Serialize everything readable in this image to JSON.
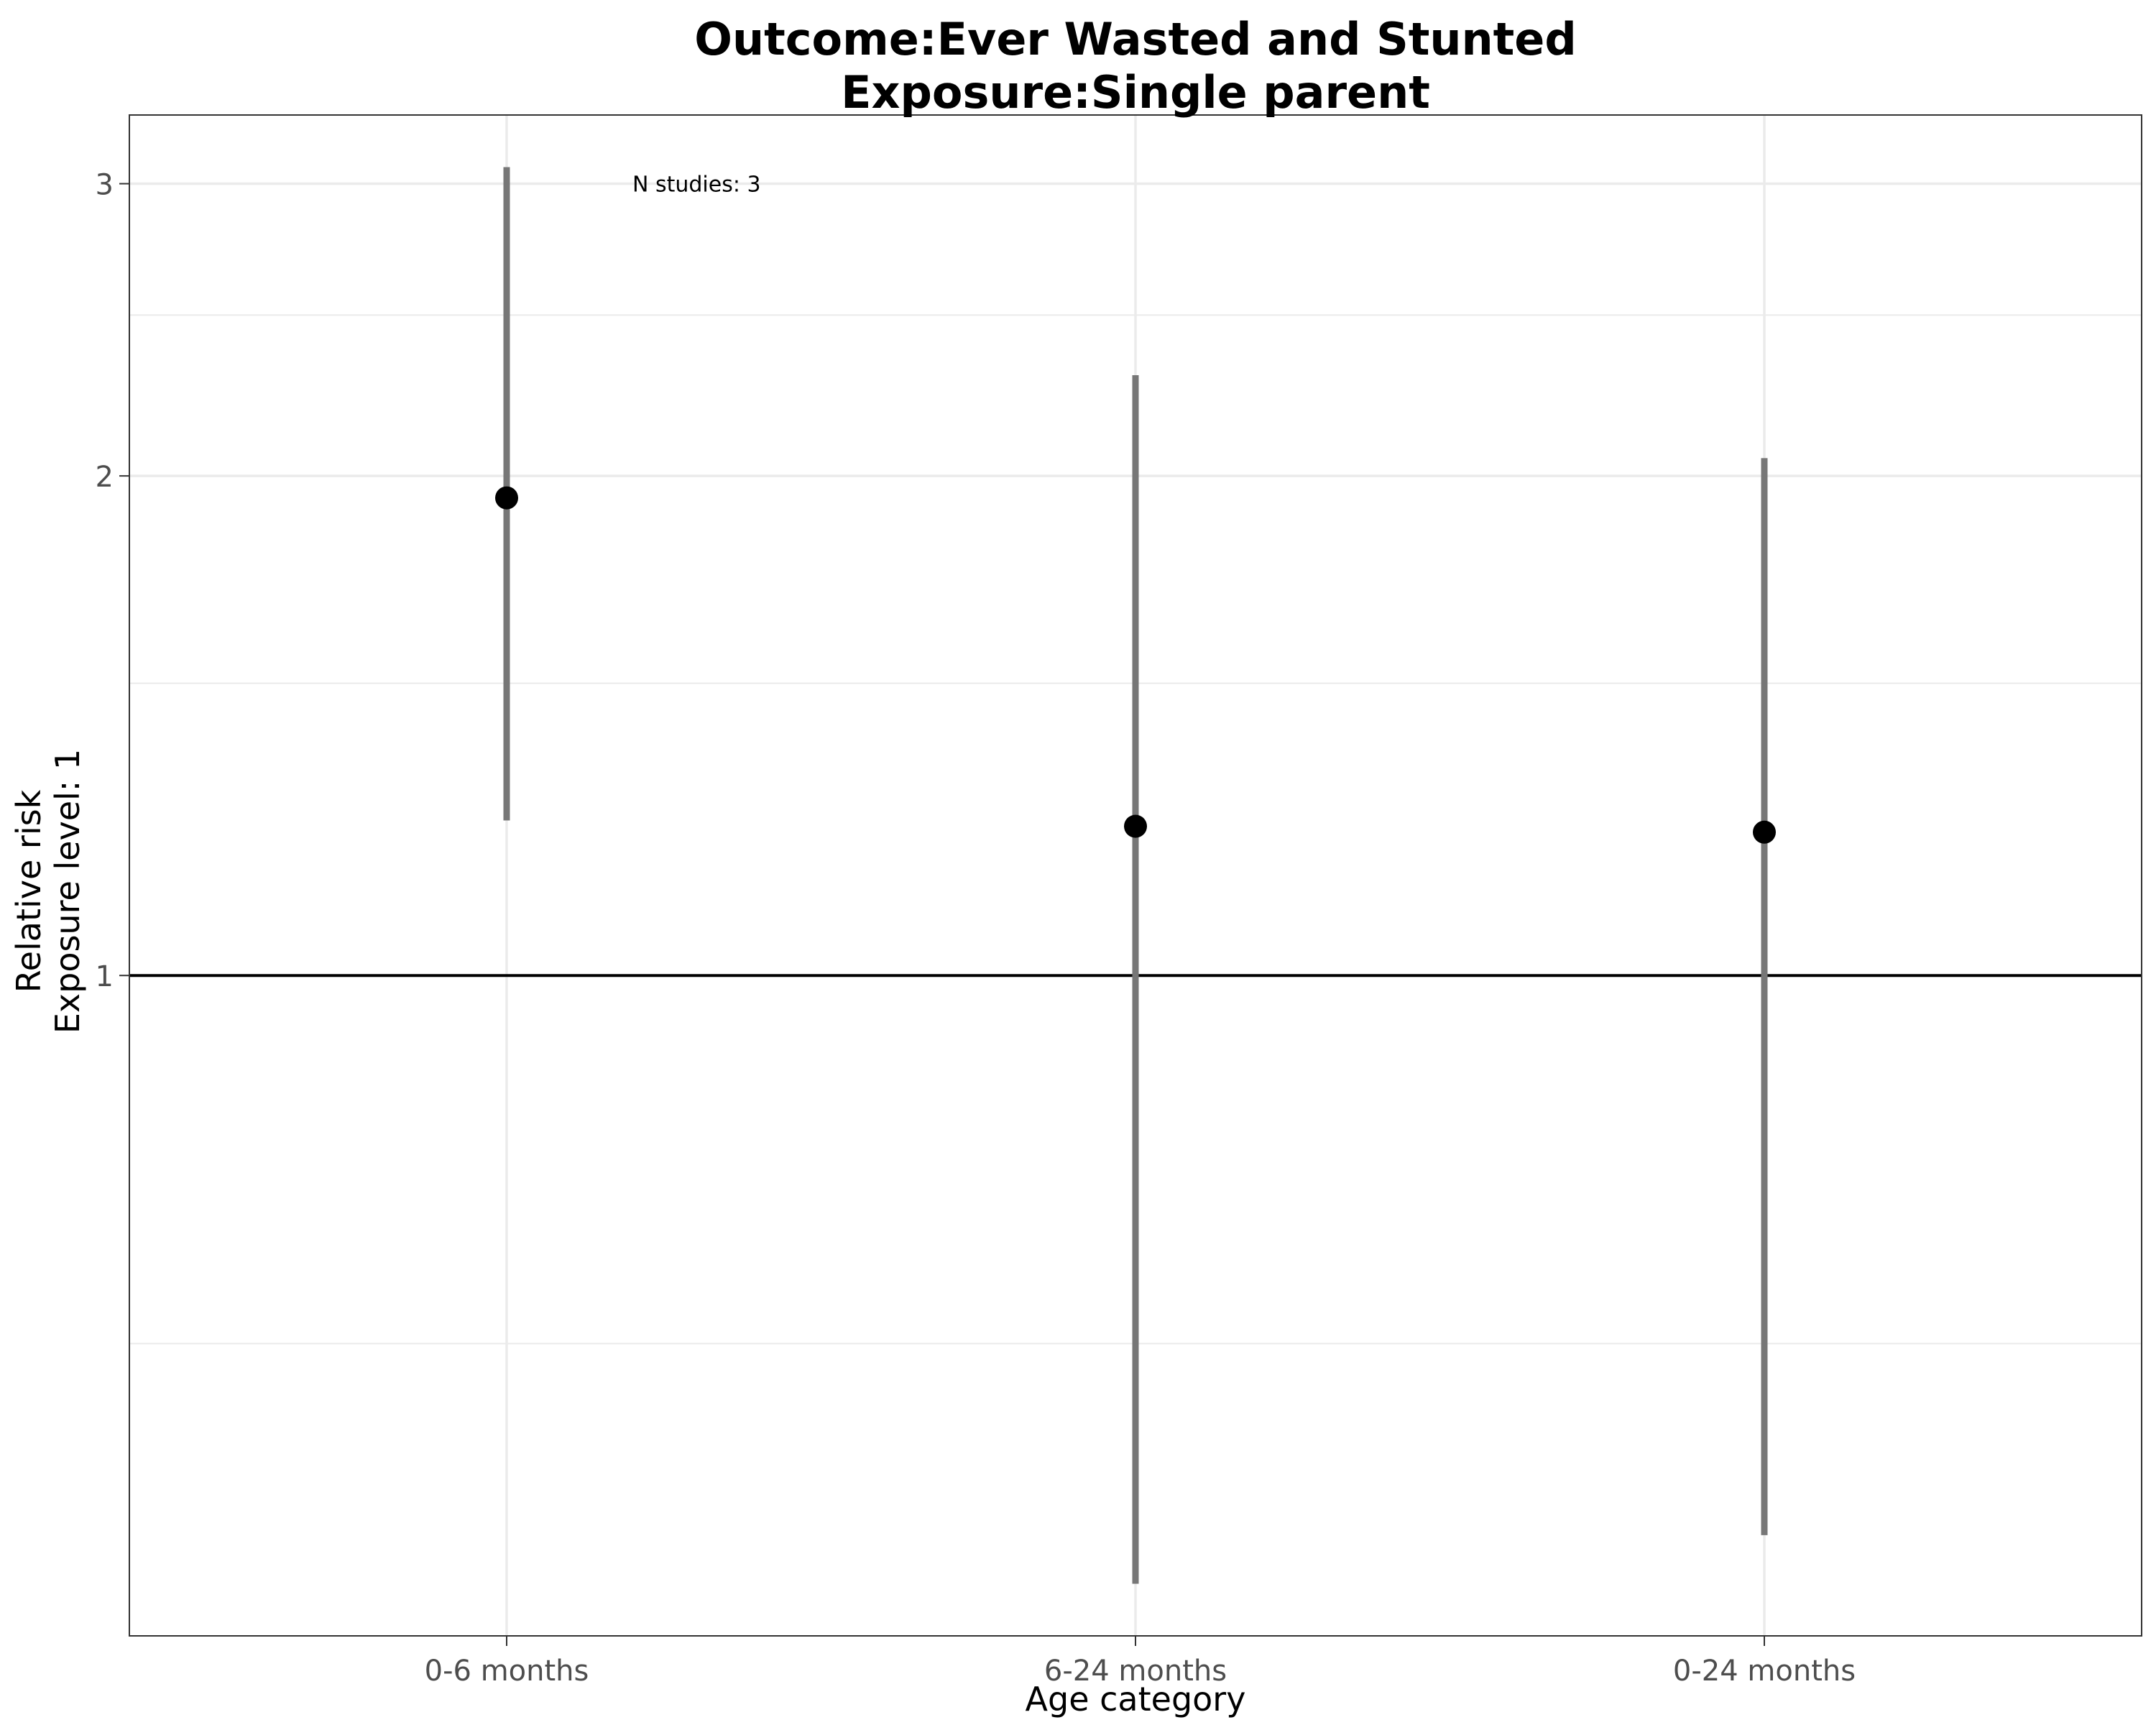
{
  "chart_data": {
    "type": "scatter",
    "title_lines": [
      "Outcome:Ever Wasted and Stunted",
      "Exposure:Single parent"
    ],
    "xlabel": "Age category",
    "ylabel_lines": [
      "Relative risk",
      "Exposure level: 1"
    ],
    "y_scale": "log",
    "ylim": [
      0.4,
      3.3
    ],
    "y_ticks": [
      1,
      2,
      3
    ],
    "y_tick_labels": [
      "1",
      "2",
      "3"
    ],
    "y_minor_ticks": [
      0.6,
      1.5,
      2.5
    ],
    "reference_line": 1,
    "grid": true,
    "categories": [
      "0-6 months",
      "6-24 months",
      "0-24 months"
    ],
    "series": [
      {
        "points": [
          {
            "category": "0-6 months",
            "estimate": 1.94,
            "lower": 1.24,
            "upper": 3.07
          },
          {
            "category": "6-24 months",
            "estimate": 1.23,
            "lower": 0.43,
            "upper": 2.3
          },
          {
            "category": "0-24 months",
            "estimate": 1.22,
            "lower": 0.46,
            "upper": 2.05
          }
        ]
      }
    ],
    "annotations": [
      {
        "text": "N studies: 3",
        "x_category": "0-6 months",
        "y": 3.0
      }
    ],
    "colors": {
      "point": "#000000",
      "errorbar": "#777777",
      "reference_line": "#000000",
      "grid": "#ebebeb",
      "panel_border": "#333333"
    }
  }
}
